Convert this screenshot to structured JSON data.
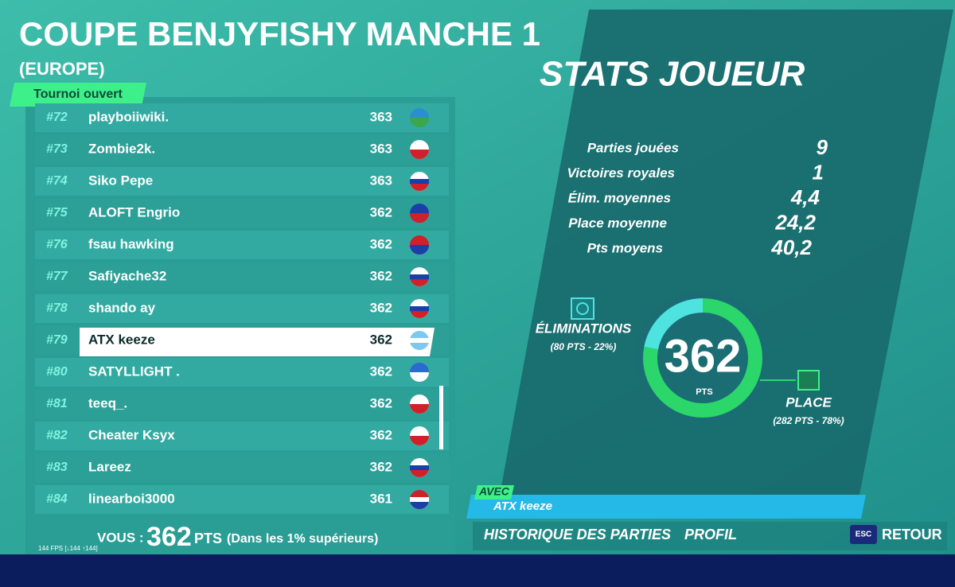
{
  "header": {
    "title": "COUPE BENJYFISHY MANCHE 1",
    "region": "(EUROPE)",
    "tag": "Tournoi ouvert"
  },
  "leaderboard": {
    "rows": [
      {
        "rank": "#72",
        "name": "playboiiwiki.",
        "points": 363
      },
      {
        "rank": "#73",
        "name": "Zombie2k.",
        "points": 363
      },
      {
        "rank": "#74",
        "name": "Siko Pepe",
        "points": 363
      },
      {
        "rank": "#75",
        "name": "ALOFT Engrio",
        "points": 362
      },
      {
        "rank": "#76",
        "name": "fsau hawking",
        "points": 362
      },
      {
        "rank": "#77",
        "name": "Safiyache32",
        "points": 362
      },
      {
        "rank": "#78",
        "name": "shando ay",
        "points": 362
      },
      {
        "rank": "#79",
        "name": "ATX keeze",
        "points": 362
      },
      {
        "rank": "#80",
        "name": "SATYLLIGHT .",
        "points": 362
      },
      {
        "rank": "#81",
        "name": "teeq_.",
        "points": 362
      },
      {
        "rank": "#82",
        "name": "Cheater Ksyx",
        "points": 362
      },
      {
        "rank": "#83",
        "name": "Lareez",
        "points": 362
      },
      {
        "rank": "#84",
        "name": "linearboi3000",
        "points": 361
      }
    ]
  },
  "footer": {
    "you_label": "VOUS :",
    "you_points": 362,
    "pts": "PTS",
    "note": "(Dans les 1% supérieurs)",
    "fps": "144 FPS [↓144 ↑144]"
  },
  "stats": {
    "title": "STATS JOUEUR",
    "items": [
      {
        "label": "Parties jouées",
        "value": "9"
      },
      {
        "label": "Victoires royales",
        "value": "1"
      },
      {
        "label": "Élim. moyennes",
        "value": "4,4"
      },
      {
        "label": "Place moyenne",
        "value": "24,2"
      },
      {
        "label": "Pts moyens",
        "value": "40,2"
      }
    ]
  },
  "score": {
    "value": 362,
    "unit": "PTS",
    "elim_label": "ÉLIMINATIONS",
    "elim_detail": "(80 PTS - 22%)",
    "place_label": "PLACE",
    "place_detail": "(282 PTS - 78%)",
    "shares": [
      22,
      78
    ]
  },
  "bottom": {
    "with": "AVEC",
    "player": "ATX keeze",
    "tabs": [
      "HISTORIQUE DES PARTIES",
      "PROFIL"
    ],
    "key": "ESC",
    "back": "RETOUR"
  }
}
